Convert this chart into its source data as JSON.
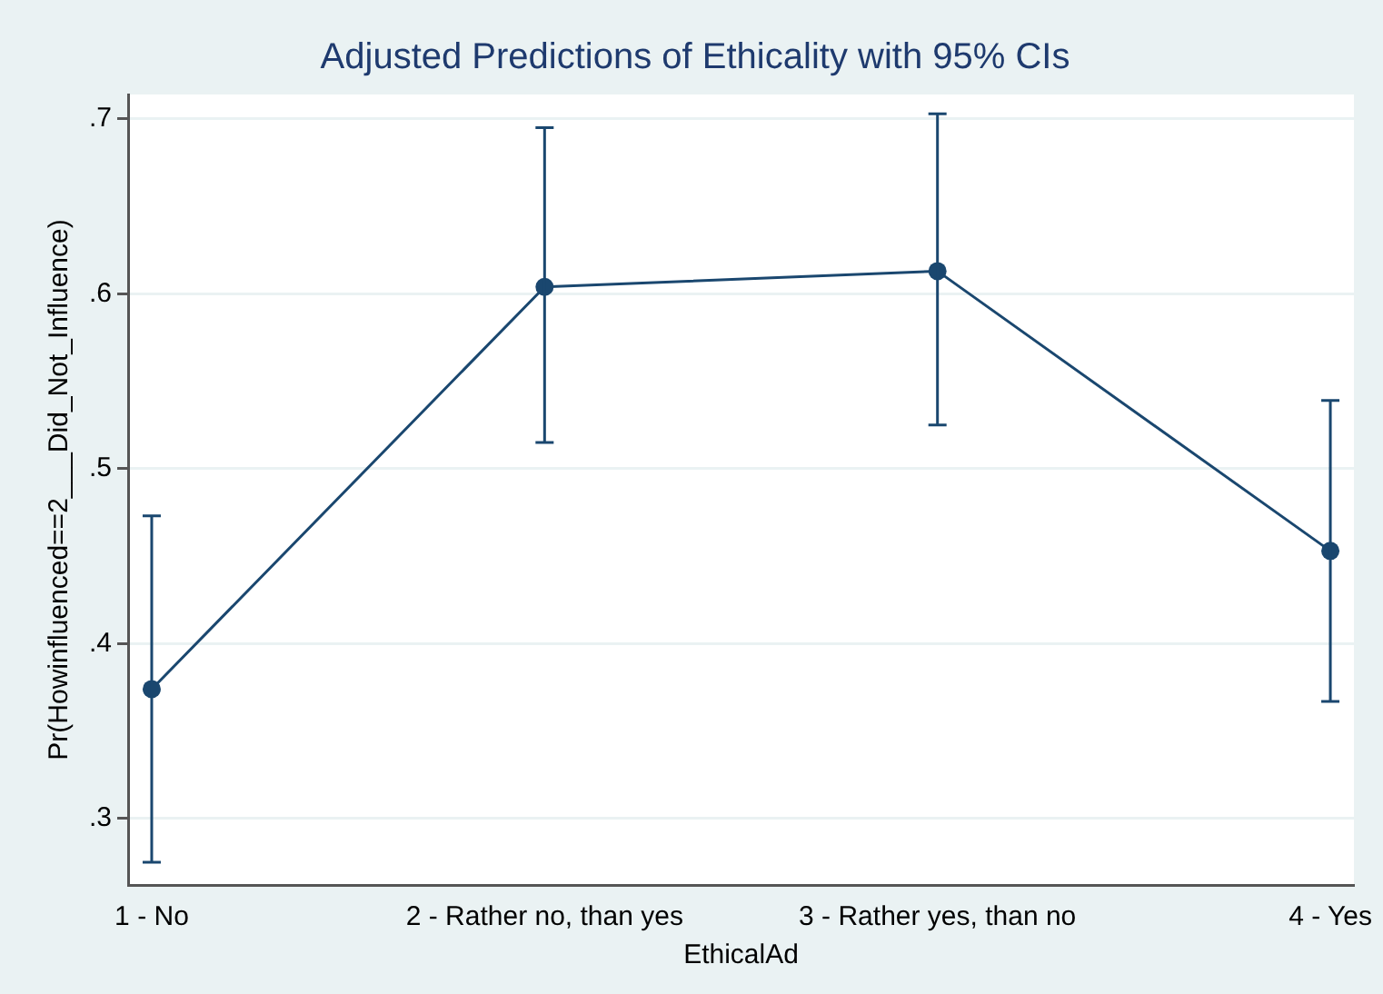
{
  "chart_data": {
    "type": "line",
    "title": "Adjusted Predictions of Ethicality with 95% CIs",
    "xlabel": "EthicalAd",
    "ylabel": "Pr(Howinfluenced==2___Did_Not_Influence)",
    "x": [
      1,
      2,
      3,
      4
    ],
    "series": [
      {
        "color": "#1a476f",
        "values": [
          0.374,
          0.604,
          0.613,
          0.453
        ],
        "errors": [
          [
            0.275,
            0.473
          ],
          [
            0.515,
            0.695
          ],
          [
            0.525,
            0.703
          ],
          [
            0.367,
            0.539
          ]
        ]
      }
    ],
    "xlim": [
      0.94,
      4.06
    ],
    "xticks": [
      {
        "value": 1,
        "label": "1 - No"
      },
      {
        "value": 2,
        "label": "2 - Rather no, than yes"
      },
      {
        "value": 3,
        "label": "3 - Rather yes, than no"
      },
      {
        "value": 4,
        "label": "4 - Yes"
      }
    ],
    "ylim": [
      0.262,
      0.714
    ],
    "yticks": [
      {
        "value": 0.3,
        "label": ".3"
      },
      {
        "value": 0.4,
        "label": ".4"
      },
      {
        "value": 0.5,
        "label": ".5"
      },
      {
        "value": 0.6,
        "label": ".6"
      },
      {
        "value": 0.7,
        "label": ".7"
      }
    ],
    "grid": "y",
    "legend": false,
    "marker": "circle",
    "line_style": "solid"
  }
}
